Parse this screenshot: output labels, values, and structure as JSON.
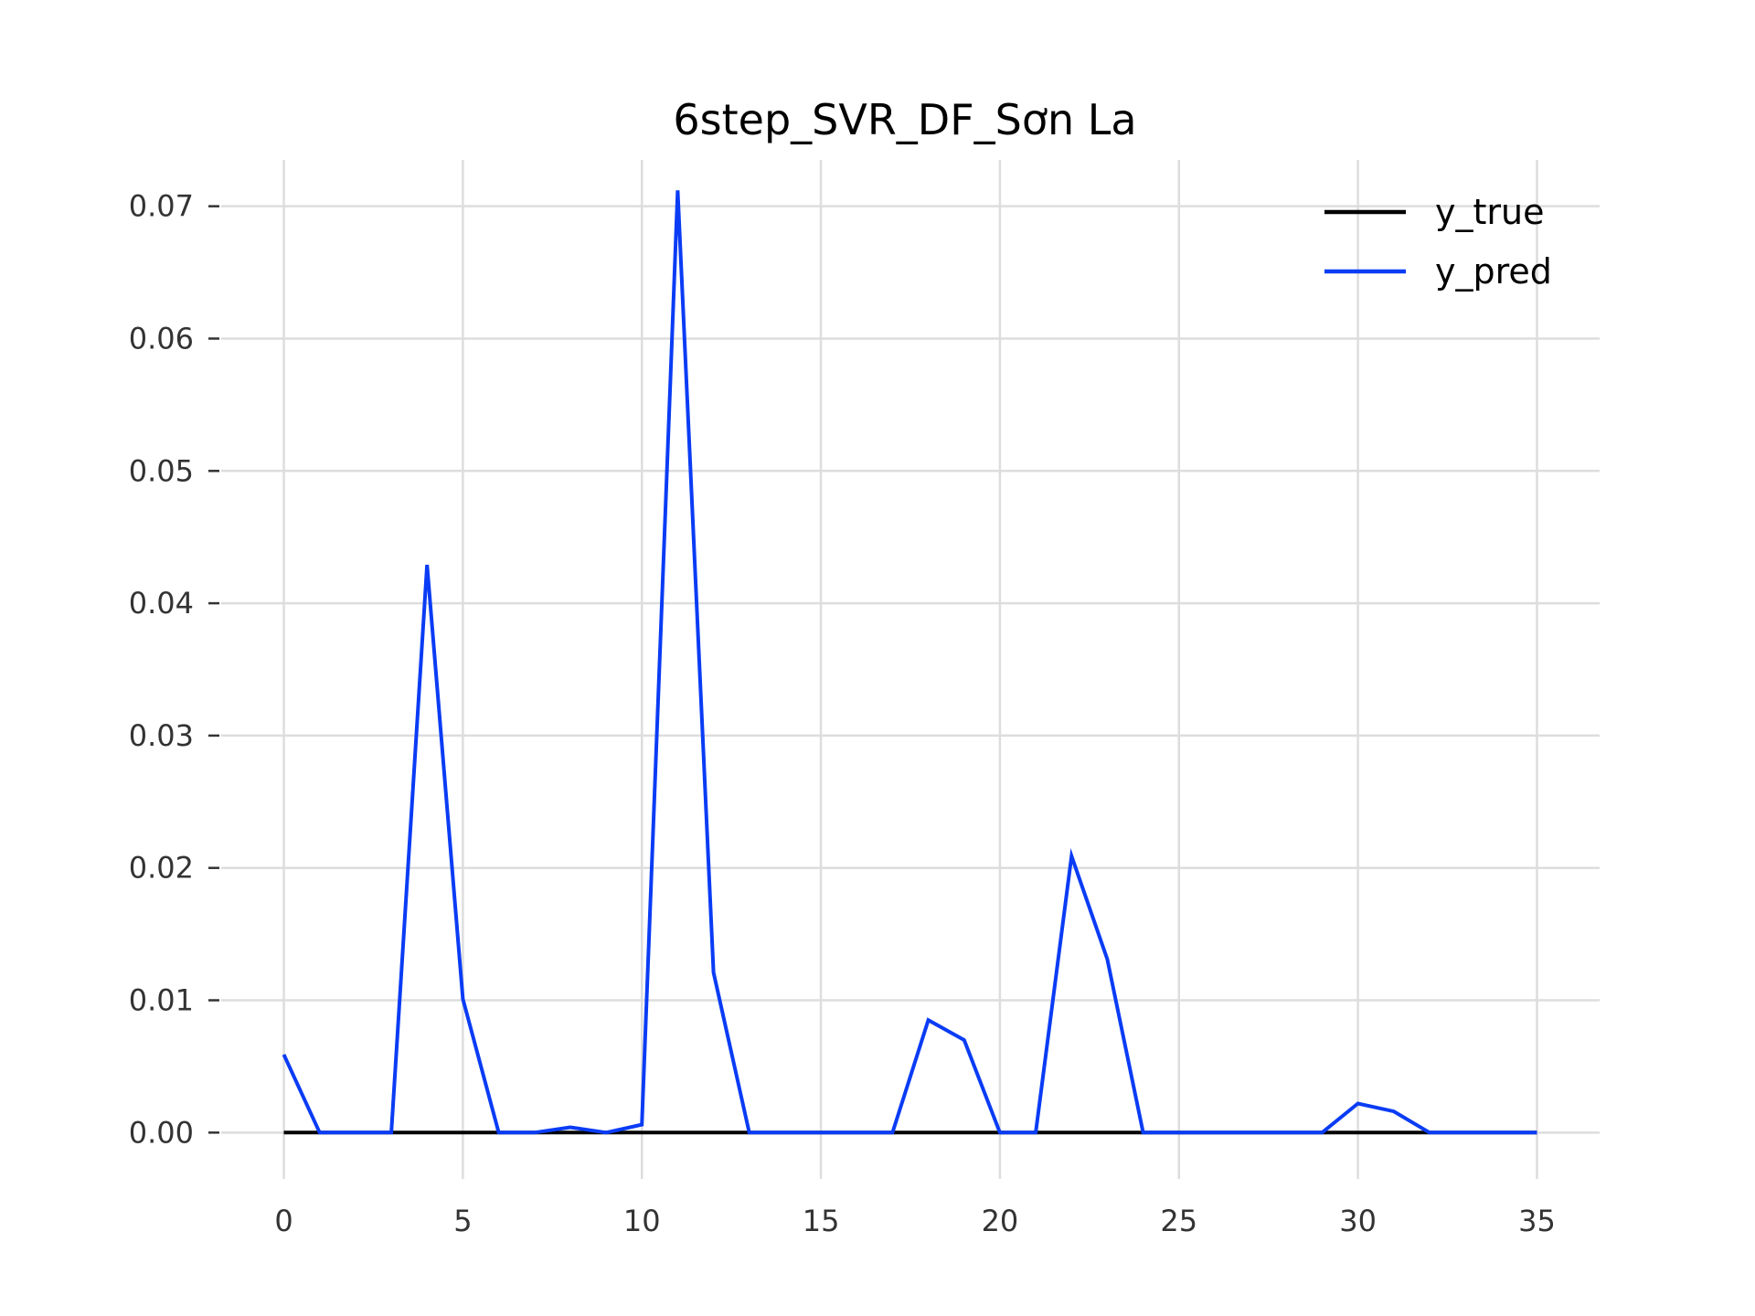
{
  "chart_data": {
    "type": "line",
    "title": "6step_SVR_DF_Sơn La",
    "xlabel": "",
    "ylabel": "",
    "xlim": [
      -1.75,
      36.75
    ],
    "ylim": [
      -0.0035,
      0.0735
    ],
    "x_ticks": [
      0,
      5,
      10,
      15,
      20,
      25,
      30,
      35
    ],
    "x_tick_labels": [
      "0",
      "5",
      "10",
      "15",
      "20",
      "25",
      "30",
      "35"
    ],
    "y_ticks": [
      0.0,
      0.01,
      0.02,
      0.03,
      0.04,
      0.05,
      0.06,
      0.07
    ],
    "y_tick_labels": [
      "0.00",
      "0.01",
      "0.02",
      "0.03",
      "0.04",
      "0.05",
      "0.06",
      "0.07"
    ],
    "grid": true,
    "legend_position": "top-right",
    "x": [
      0,
      1,
      2,
      3,
      4,
      5,
      6,
      7,
      8,
      9,
      10,
      11,
      12,
      13,
      14,
      15,
      16,
      17,
      18,
      19,
      20,
      21,
      22,
      23,
      24,
      25,
      26,
      27,
      28,
      29,
      30,
      31,
      32,
      33,
      34,
      35
    ],
    "series": [
      {
        "name": "y_true",
        "color": "#000000",
        "values": [
          0,
          0,
          0,
          0,
          0,
          0,
          0,
          0,
          0,
          0,
          0,
          0,
          0,
          0,
          0,
          0,
          0,
          0,
          0,
          0,
          0,
          0,
          0,
          0,
          0,
          0,
          0,
          0,
          0,
          0,
          0,
          0,
          0,
          0,
          0,
          0
        ]
      },
      {
        "name": "y_pred",
        "color": "#0a3cf5",
        "values": [
          0.0059,
          0,
          0,
          0,
          0.0429,
          0.0101,
          0,
          0,
          0.0004,
          0,
          0.0006,
          0.0712,
          0.0121,
          0,
          0,
          0,
          0,
          0,
          0.0085,
          0.007,
          0,
          0,
          0.0209,
          0.0131,
          0,
          0,
          0,
          0,
          0,
          0,
          0.0022,
          0.0016,
          0,
          0,
          0,
          0
        ]
      }
    ]
  }
}
